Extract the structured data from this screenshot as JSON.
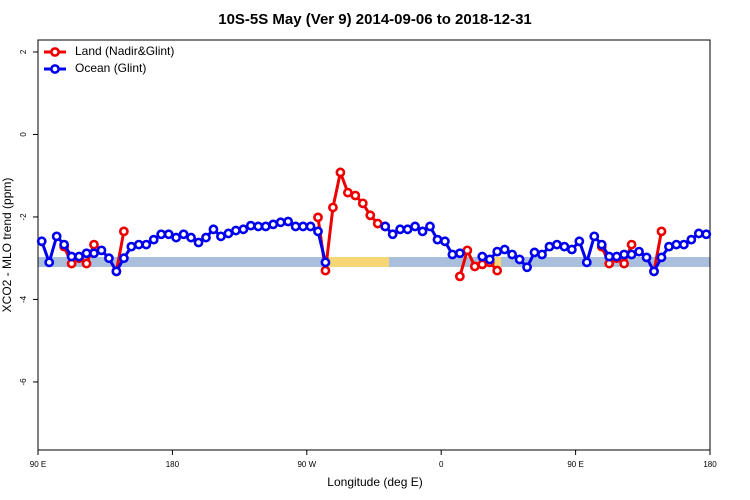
{
  "chart_data": {
    "type": "line",
    "title": "10S-5S May (Ver 9)   2014-09-06 to 2018-12-31",
    "x_label": "Longitude (deg E)",
    "y_label": "XCO2 - MLO trend (ppm)",
    "xlim": [
      90,
      540
    ],
    "xticks": [
      {
        "value": 90,
        "label": "90 E"
      },
      {
        "value": 180,
        "label": "180"
      },
      {
        "value": 270,
        "label": "90 W"
      },
      {
        "value": 360,
        "label": "0"
      },
      {
        "value": 450,
        "label": "90 E"
      },
      {
        "value": 540,
        "label": "180"
      }
    ],
    "ylim": [
      -7.65,
      2.29
    ],
    "yticks": [
      2,
      0,
      -2,
      -4,
      -6
    ],
    "legend": "top-left",
    "x": [
      92.5,
      97.5,
      102.5,
      107.5,
      112.5,
      117.5,
      122.5,
      127.5,
      132.5,
      137.5,
      142.5,
      147.5,
      152.5,
      157.5,
      162.5,
      167.5,
      172.5,
      177.5,
      182.5,
      187.5,
      192.5,
      197.5,
      202.5,
      207.5,
      212.5,
      217.5,
      222.5,
      227.5,
      232.5,
      237.5,
      242.5,
      247.5,
      252.5,
      257.5,
      262.5,
      267.5,
      272.5,
      277.5,
      282.5,
      287.5,
      292.5,
      297.5,
      302.5,
      307.5,
      312.5,
      317.5,
      322.5,
      327.5,
      332.5,
      337.5,
      342.5,
      347.5,
      352.5,
      357.5,
      362.5,
      367.5,
      372.5,
      377.5,
      382.5,
      387.5,
      392.5,
      397.5,
      402.5,
      407.5,
      412.5,
      417.5,
      422.5,
      427.5,
      432.5,
      437.5,
      442.5,
      447.5,
      452.5,
      457.5,
      462.5,
      467.5,
      472.5,
      477.5,
      482.5,
      487.5,
      492.5,
      497.5,
      502.5,
      507.5,
      512.5,
      517.5,
      522.5,
      527.5,
      532.5,
      537.5
    ],
    "series": [
      {
        "name": "Land (Nadir&Glint)",
        "color": "#ee0000",
        "values": [
          null,
          null,
          null,
          -2.72,
          -3.13,
          -3.0,
          -3.13,
          -2.67,
          null,
          null,
          -3.32,
          -2.35,
          null,
          null,
          null,
          null,
          null,
          null,
          null,
          null,
          null,
          null,
          null,
          null,
          null,
          null,
          null,
          null,
          null,
          null,
          null,
          null,
          null,
          null,
          null,
          null,
          null,
          -2.01,
          -3.3,
          -1.77,
          -0.92,
          -1.41,
          -1.48,
          -1.67,
          -1.96,
          -2.16,
          -2.23,
          null,
          null,
          null,
          null,
          null,
          null,
          null,
          null,
          null,
          -3.44,
          -2.81,
          -3.2,
          -3.15,
          -3.1,
          -3.3,
          null,
          null,
          null,
          null,
          null,
          null,
          null,
          null,
          null,
          null,
          null,
          null,
          null,
          -2.72,
          -3.13,
          -3.0,
          -3.13,
          -2.67,
          null,
          null,
          -3.32,
          -2.35,
          null,
          null,
          null,
          null,
          null,
          null
        ]
      },
      {
        "name": "Ocean (Glint)",
        "color": "#0000ee",
        "values": [
          -2.59,
          -3.1,
          -2.47,
          -2.67,
          -2.96,
          -2.96,
          -2.88,
          -2.88,
          -2.81,
          -3.0,
          -3.32,
          -3.0,
          -2.72,
          -2.67,
          -2.67,
          -2.55,
          -2.42,
          -2.42,
          -2.5,
          -2.42,
          -2.5,
          -2.62,
          -2.5,
          -2.3,
          -2.47,
          -2.4,
          -2.33,
          -2.3,
          -2.21,
          -2.23,
          -2.23,
          -2.18,
          -2.13,
          -2.11,
          -2.23,
          -2.23,
          -2.23,
          -2.35,
          -3.1,
          null,
          null,
          null,
          null,
          null,
          null,
          null,
          -2.23,
          -2.42,
          -2.3,
          -2.3,
          -2.23,
          -2.35,
          -2.23,
          -2.55,
          -2.59,
          -2.91,
          -2.88,
          null,
          null,
          -2.96,
          -3.03,
          -2.84,
          -2.79,
          -2.91,
          -3.03,
          -3.22,
          -2.86,
          -2.91,
          -2.72,
          -2.67,
          -2.72,
          -2.79,
          -2.59,
          -3.1,
          -2.47,
          -2.67,
          -2.96,
          -2.96,
          -2.91,
          -2.91,
          -2.84,
          -2.98,
          -3.32,
          -2.98,
          -2.72,
          -2.67,
          -2.67,
          -2.55,
          -2.4,
          -2.42
        ]
      }
    ]
  }
}
